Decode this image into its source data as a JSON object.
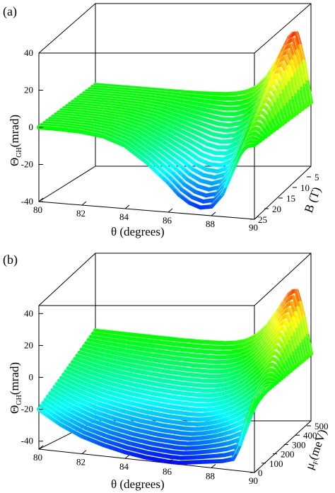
{
  "chart_data": [
    {
      "type": "surface",
      "panel_label": "(a)",
      "x_axis": {
        "label": "θ (degrees)",
        "ticks": [
          "80",
          "82",
          "84",
          "86",
          "88",
          "90"
        ],
        "range": [
          80,
          90
        ]
      },
      "z_axis": {
        "label_main": "Θ",
        "label_sub": "GH",
        "label_unit": "(mrad)",
        "ticks": [
          "40",
          "20",
          "0",
          "-20",
          "-40"
        ],
        "range": [
          -40,
          40
        ]
      },
      "depth_axis": {
        "label": "B (T)",
        "ticks": [
          "5",
          "10",
          "15",
          "20",
          "25"
        ],
        "range": [
          5,
          25
        ]
      },
      "series_count": 21,
      "curve_points": {
        "theta": [
          80,
          81,
          82,
          83,
          84,
          85,
          86,
          86.5,
          87,
          87.5,
          88,
          88.5,
          89,
          89.3,
          89.6,
          90
        ],
        "theta_gh_back": [
          0,
          0,
          0,
          0,
          0,
          0.2,
          0.8,
          1.5,
          3,
          6,
          12,
          22,
          34,
          38,
          26,
          0
        ],
        "theta_gh_front": [
          0,
          0,
          -0.5,
          -2,
          -6,
          -14,
          -24,
          -30,
          -34,
          -36,
          -35,
          -28,
          -14,
          -6,
          -1,
          0
        ]
      },
      "colorscale": [
        "#0000ff",
        "#00ffff",
        "#00ff00",
        "#ffff00",
        "#ff0000"
      ]
    },
    {
      "type": "surface",
      "panel_label": "(b)",
      "x_axis": {
        "label": "θ (degrees)",
        "ticks": [
          "80",
          "82",
          "84",
          "86",
          "88",
          "90"
        ],
        "range": [
          80,
          90
        ]
      },
      "z_axis": {
        "label_main": "Θ",
        "label_sub": "GH",
        "label_unit": "(mrad)",
        "ticks": [
          "40",
          "20",
          "0",
          "-20",
          "-40"
        ],
        "range": [
          -45,
          45
        ]
      },
      "depth_axis": {
        "label_main": "μ",
        "label_sub": "F",
        "label_unit": "(meV)",
        "ticks": [
          "0",
          "100",
          "200",
          "300",
          "400",
          "500"
        ],
        "range": [
          0,
          500
        ]
      },
      "series_count": 26,
      "curve_points": {
        "theta": [
          80,
          81,
          82,
          83,
          84,
          85,
          86,
          86.5,
          87,
          87.5,
          88,
          88.5,
          89,
          89.3,
          89.6,
          90
        ],
        "theta_gh_back": [
          0,
          0,
          0,
          0,
          0,
          0.3,
          1,
          2,
          4,
          8,
          15,
          25,
          36,
          40,
          27,
          0
        ],
        "theta_gh_front": [
          -20,
          -28,
          -34,
          -38,
          -41,
          -43,
          -44,
          -44,
          -43,
          -42,
          -41,
          -40,
          -38,
          -30,
          -15,
          0
        ]
      },
      "colorscale": [
        "#0000ff",
        "#00ffff",
        "#00ff00",
        "#ffff00",
        "#ff0000"
      ]
    }
  ]
}
